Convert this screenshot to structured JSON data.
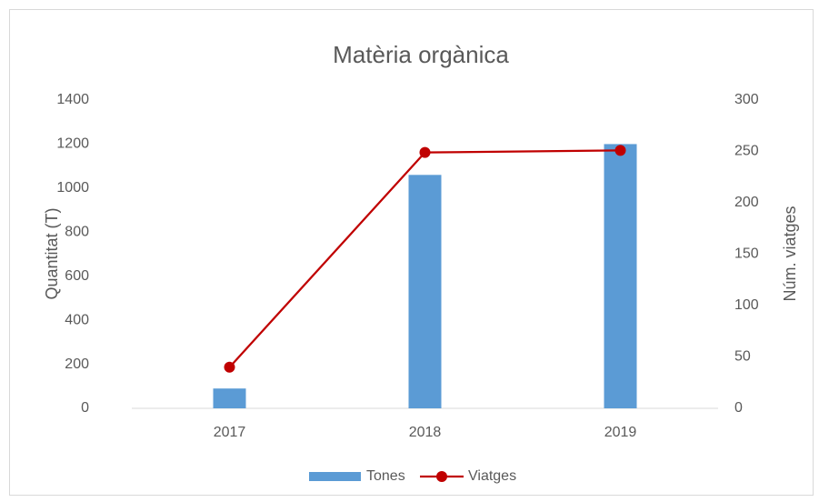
{
  "chart_data": {
    "type": "bar",
    "title": "Matèria orgànica",
    "categories": [
      "2017",
      "2018",
      "2019"
    ],
    "series": [
      {
        "name": "Tones",
        "type": "bar",
        "color": "#5b9bd5",
        "values": [
          90,
          1060,
          1200
        ]
      },
      {
        "name": "Viatges",
        "type": "line",
        "axis": "y2",
        "color": "#c00000",
        "values": [
          40,
          249,
          251
        ]
      }
    ],
    "ylabel": "Quantitat (T)",
    "y2label": "Núm. viatges",
    "ylim": [
      0,
      1400
    ],
    "yticks": [
      0,
      200,
      400,
      600,
      800,
      1000,
      1200,
      1400
    ],
    "y2lim": [
      0,
      300
    ],
    "y2ticks": [
      0,
      50,
      100,
      150,
      200,
      250,
      300
    ],
    "grid": false,
    "legend": "bottom"
  }
}
